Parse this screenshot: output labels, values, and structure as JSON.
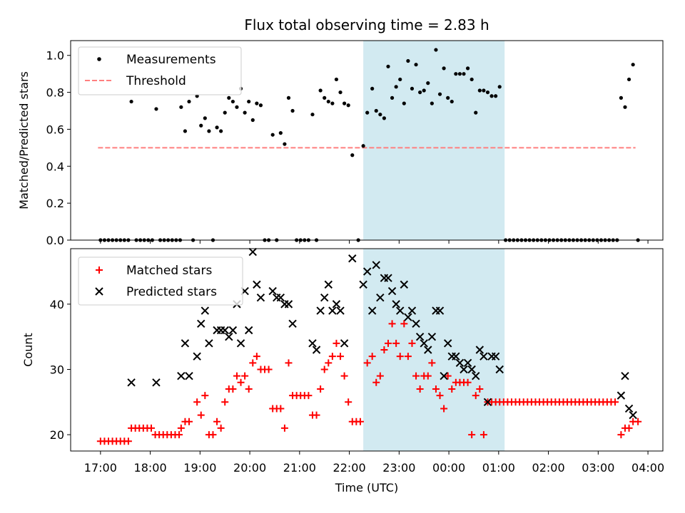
{
  "chart_data": {
    "title": "Flux total observing time = 2.83 h",
    "xlabel": "Time (UTC)",
    "x_unit": "hours since 17:00 UTC",
    "xlim": [
      -0.6,
      11.3
    ],
    "x_ticks": [
      {
        "x": 0,
        "label": "17:00"
      },
      {
        "x": 1,
        "label": "18:00"
      },
      {
        "x": 2,
        "label": "19:00"
      },
      {
        "x": 3,
        "label": "20:00"
      },
      {
        "x": 4,
        "label": "21:00"
      },
      {
        "x": 5,
        "label": "22:00"
      },
      {
        "x": 6,
        "label": "23:00"
      },
      {
        "x": 7,
        "label": "00:00"
      },
      {
        "x": 8,
        "label": "01:00"
      },
      {
        "x": 9,
        "label": "02:00"
      },
      {
        "x": 10,
        "label": "03:00"
      },
      {
        "x": 11,
        "label": "04:00"
      }
    ],
    "shaded_span": {
      "x0": 5.28,
      "x1": 8.12,
      "color": "#add8e6"
    },
    "top": {
      "type": "scatter",
      "ylabel": "Matched/Predicted stars",
      "ylim": [
        0,
        1.08
      ],
      "yticks": [
        "0.0",
        "0.2",
        "0.4",
        "0.6",
        "0.8",
        "1.0"
      ],
      "ytick_values": [
        0,
        0.2,
        0.4,
        0.6,
        0.8,
        1.0
      ],
      "legend": {
        "measurements": "Measurements",
        "threshold": "Threshold"
      },
      "threshold": {
        "y": 0.5,
        "x0": -0.05,
        "x1": 10.75,
        "color": "#ff7f7f"
      },
      "measurements": [
        [
          0.0,
          0
        ],
        [
          0.08,
          0
        ],
        [
          0.16,
          0
        ],
        [
          0.24,
          0
        ],
        [
          0.32,
          0
        ],
        [
          0.4,
          0
        ],
        [
          0.48,
          0
        ],
        [
          0.56,
          0
        ],
        [
          0.62,
          0.75
        ],
        [
          0.72,
          0
        ],
        [
          0.8,
          0
        ],
        [
          0.88,
          0
        ],
        [
          0.96,
          0
        ],
        [
          1.04,
          0
        ],
        [
          1.12,
          0.71
        ],
        [
          1.2,
          0
        ],
        [
          1.28,
          0
        ],
        [
          1.36,
          0
        ],
        [
          1.44,
          0
        ],
        [
          1.52,
          0
        ],
        [
          1.6,
          0
        ],
        [
          1.62,
          0.72
        ],
        [
          1.7,
          0.59
        ],
        [
          1.78,
          0.75
        ],
        [
          1.86,
          0
        ],
        [
          1.94,
          0.78
        ],
        [
          2.02,
          0.62
        ],
        [
          2.1,
          0.66
        ],
        [
          2.18,
          0.59
        ],
        [
          2.26,
          0
        ],
        [
          2.34,
          0.61
        ],
        [
          2.42,
          0.59
        ],
        [
          2.5,
          0.69
        ],
        [
          2.58,
          0.77
        ],
        [
          2.66,
          0.75
        ],
        [
          2.74,
          0.72
        ],
        [
          2.82,
          0.82
        ],
        [
          2.9,
          0.69
        ],
        [
          2.98,
          0.75
        ],
        [
          3.06,
          0.65
        ],
        [
          3.14,
          0.74
        ],
        [
          3.22,
          0.73
        ],
        [
          3.3,
          0
        ],
        [
          3.38,
          0
        ],
        [
          3.46,
          0.57
        ],
        [
          3.54,
          0
        ],
        [
          3.62,
          0.58
        ],
        [
          3.7,
          0.52
        ],
        [
          3.78,
          0.77
        ],
        [
          3.86,
          0.7
        ],
        [
          3.94,
          0
        ],
        [
          4.02,
          0
        ],
        [
          4.1,
          0
        ],
        [
          4.18,
          0
        ],
        [
          4.26,
          0.68
        ],
        [
          4.34,
          0
        ],
        [
          4.42,
          0.81
        ],
        [
          4.5,
          0.77
        ],
        [
          4.58,
          0.75
        ],
        [
          4.66,
          0.74
        ],
        [
          4.74,
          0.87
        ],
        [
          4.82,
          0.8
        ],
        [
          4.9,
          0.74
        ],
        [
          4.98,
          0.73
        ],
        [
          5.06,
          0.46
        ],
        [
          5.18,
          0
        ],
        [
          5.28,
          0.51
        ],
        [
          5.36,
          0.69
        ],
        [
          5.46,
          0.82
        ],
        [
          5.54,
          0.7
        ],
        [
          5.62,
          0.68
        ],
        [
          5.7,
          0.66
        ],
        [
          5.78,
          0.94
        ],
        [
          5.86,
          0.77
        ],
        [
          5.94,
          0.83
        ],
        [
          6.02,
          0.87
        ],
        [
          6.1,
          0.74
        ],
        [
          6.18,
          0.97
        ],
        [
          6.26,
          0.82
        ],
        [
          6.34,
          0.95
        ],
        [
          6.42,
          0.8
        ],
        [
          6.5,
          0.81
        ],
        [
          6.58,
          0.85
        ],
        [
          6.66,
          0.74
        ],
        [
          6.74,
          1.03
        ],
        [
          6.82,
          0.79
        ],
        [
          6.9,
          0.93
        ],
        [
          6.98,
          0.77
        ],
        [
          7.06,
          0.75
        ],
        [
          7.14,
          0.9
        ],
        [
          7.22,
          0.9
        ],
        [
          7.3,
          0.9
        ],
        [
          7.38,
          0.93
        ],
        [
          7.46,
          0.87
        ],
        [
          7.54,
          0.69
        ],
        [
          7.62,
          0.81
        ],
        [
          7.7,
          0.81
        ],
        [
          7.78,
          0.8
        ],
        [
          7.86,
          0.78
        ],
        [
          7.94,
          0.78
        ],
        [
          8.02,
          0.83
        ],
        [
          8.14,
          0
        ],
        [
          8.22,
          0
        ],
        [
          8.3,
          0
        ],
        [
          8.38,
          0
        ],
        [
          8.46,
          0
        ],
        [
          8.54,
          0
        ],
        [
          8.62,
          0
        ],
        [
          8.7,
          0
        ],
        [
          8.78,
          0
        ],
        [
          8.86,
          0
        ],
        [
          8.94,
          0
        ],
        [
          9.02,
          0
        ],
        [
          9.1,
          0
        ],
        [
          9.18,
          0
        ],
        [
          9.26,
          0
        ],
        [
          9.34,
          0
        ],
        [
          9.42,
          0
        ],
        [
          9.5,
          0
        ],
        [
          9.58,
          0
        ],
        [
          9.66,
          0
        ],
        [
          9.74,
          0
        ],
        [
          9.82,
          0
        ],
        [
          9.9,
          0
        ],
        [
          9.98,
          0
        ],
        [
          10.06,
          0
        ],
        [
          10.14,
          0
        ],
        [
          10.22,
          0
        ],
        [
          10.3,
          0
        ],
        [
          10.38,
          0
        ],
        [
          10.46,
          0.77
        ],
        [
          10.54,
          0.72
        ],
        [
          10.62,
          0.87
        ],
        [
          10.7,
          0.95
        ],
        [
          10.8,
          0
        ]
      ]
    },
    "bottom": {
      "type": "scatter",
      "ylabel": "Count",
      "ylim": [
        17.5,
        48.5
      ],
      "yticks": [
        "20",
        "30",
        "40"
      ],
      "ytick_values": [
        20,
        30,
        40
      ],
      "legend": {
        "matched": "Matched stars",
        "predicted": "Predicted stars"
      },
      "matched": [
        [
          0.0,
          19
        ],
        [
          0.08,
          19
        ],
        [
          0.16,
          19
        ],
        [
          0.24,
          19
        ],
        [
          0.32,
          19
        ],
        [
          0.4,
          19
        ],
        [
          0.48,
          19
        ],
        [
          0.56,
          19
        ],
        [
          0.62,
          21
        ],
        [
          0.7,
          21
        ],
        [
          0.78,
          21
        ],
        [
          0.86,
          21
        ],
        [
          0.94,
          21
        ],
        [
          1.02,
          21
        ],
        [
          1.1,
          20
        ],
        [
          1.18,
          20
        ],
        [
          1.26,
          20
        ],
        [
          1.34,
          20
        ],
        [
          1.42,
          20
        ],
        [
          1.5,
          20
        ],
        [
          1.58,
          20
        ],
        [
          1.62,
          21
        ],
        [
          1.7,
          22
        ],
        [
          1.78,
          22
        ],
        [
          1.94,
          25
        ],
        [
          2.02,
          23
        ],
        [
          2.1,
          26
        ],
        [
          2.18,
          20
        ],
        [
          2.26,
          20
        ],
        [
          2.34,
          22
        ],
        [
          2.42,
          21
        ],
        [
          2.5,
          25
        ],
        [
          2.58,
          27
        ],
        [
          2.66,
          27
        ],
        [
          2.74,
          29
        ],
        [
          2.82,
          28
        ],
        [
          2.9,
          29
        ],
        [
          2.98,
          27
        ],
        [
          3.06,
          31
        ],
        [
          3.14,
          32
        ],
        [
          3.22,
          30
        ],
        [
          3.3,
          30
        ],
        [
          3.38,
          30
        ],
        [
          3.46,
          24
        ],
        [
          3.54,
          24
        ],
        [
          3.62,
          24
        ],
        [
          3.7,
          21
        ],
        [
          3.78,
          31
        ],
        [
          3.86,
          26
        ],
        [
          3.94,
          26
        ],
        [
          4.02,
          26
        ],
        [
          4.1,
          26
        ],
        [
          4.18,
          26
        ],
        [
          4.26,
          23
        ],
        [
          4.34,
          23
        ],
        [
          4.42,
          27
        ],
        [
          4.5,
          30
        ],
        [
          4.58,
          31
        ],
        [
          4.66,
          32
        ],
        [
          4.74,
          34
        ],
        [
          4.82,
          32
        ],
        [
          4.9,
          29
        ],
        [
          4.98,
          25
        ],
        [
          5.06,
          22
        ],
        [
          5.14,
          22
        ],
        [
          5.22,
          22
        ],
        [
          5.36,
          31
        ],
        [
          5.46,
          32
        ],
        [
          5.54,
          28
        ],
        [
          5.62,
          29
        ],
        [
          5.7,
          33
        ],
        [
          5.78,
          34
        ],
        [
          5.86,
          37
        ],
        [
          5.94,
          34
        ],
        [
          6.02,
          32
        ],
        [
          6.1,
          37
        ],
        [
          6.18,
          32
        ],
        [
          6.26,
          34
        ],
        [
          6.34,
          29
        ],
        [
          6.42,
          27
        ],
        [
          6.5,
          29
        ],
        [
          6.58,
          29
        ],
        [
          6.66,
          31
        ],
        [
          6.74,
          27
        ],
        [
          6.82,
          26
        ],
        [
          6.9,
          24
        ],
        [
          6.98,
          29
        ],
        [
          7.06,
          27
        ],
        [
          7.14,
          28
        ],
        [
          7.22,
          28
        ],
        [
          7.3,
          28
        ],
        [
          7.38,
          28
        ],
        [
          7.46,
          20
        ],
        [
          7.54,
          26
        ],
        [
          7.62,
          27
        ],
        [
          7.7,
          20
        ],
        [
          7.78,
          25
        ],
        [
          7.86,
          25
        ],
        [
          7.94,
          25
        ],
        [
          8.02,
          25
        ],
        [
          8.1,
          25
        ],
        [
          8.18,
          25
        ],
        [
          8.26,
          25
        ],
        [
          8.34,
          25
        ],
        [
          8.42,
          25
        ],
        [
          8.5,
          25
        ],
        [
          8.58,
          25
        ],
        [
          8.66,
          25
        ],
        [
          8.74,
          25
        ],
        [
          8.82,
          25
        ],
        [
          8.9,
          25
        ],
        [
          8.98,
          25
        ],
        [
          9.06,
          25
        ],
        [
          9.14,
          25
        ],
        [
          9.22,
          25
        ],
        [
          9.3,
          25
        ],
        [
          9.38,
          25
        ],
        [
          9.46,
          25
        ],
        [
          9.54,
          25
        ],
        [
          9.62,
          25
        ],
        [
          9.7,
          25
        ],
        [
          9.78,
          25
        ],
        [
          9.86,
          25
        ],
        [
          9.94,
          25
        ],
        [
          10.02,
          25
        ],
        [
          10.1,
          25
        ],
        [
          10.18,
          25
        ],
        [
          10.26,
          25
        ],
        [
          10.34,
          25
        ],
        [
          10.46,
          20
        ],
        [
          10.54,
          21
        ],
        [
          10.62,
          21
        ],
        [
          10.7,
          22
        ],
        [
          10.8,
          22
        ]
      ],
      "predicted": [
        [
          0.62,
          28
        ],
        [
          1.12,
          28
        ],
        [
          1.62,
          29
        ],
        [
          1.7,
          34
        ],
        [
          1.78,
          29
        ],
        [
          1.94,
          32
        ],
        [
          2.02,
          37
        ],
        [
          2.1,
          39
        ],
        [
          2.18,
          34
        ],
        [
          2.34,
          36
        ],
        [
          2.42,
          36
        ],
        [
          2.5,
          36
        ],
        [
          2.58,
          35
        ],
        [
          2.66,
          36
        ],
        [
          2.74,
          40
        ],
        [
          2.82,
          34
        ],
        [
          2.9,
          42
        ],
        [
          2.98,
          36
        ],
        [
          3.06,
          48
        ],
        [
          3.14,
          43
        ],
        [
          3.22,
          41
        ],
        [
          3.46,
          42
        ],
        [
          3.54,
          41
        ],
        [
          3.62,
          41
        ],
        [
          3.7,
          40
        ],
        [
          3.78,
          40
        ],
        [
          3.86,
          37
        ],
        [
          4.26,
          34
        ],
        [
          4.34,
          33
        ],
        [
          4.42,
          39
        ],
        [
          4.5,
          41
        ],
        [
          4.58,
          43
        ],
        [
          4.66,
          39
        ],
        [
          4.74,
          40
        ],
        [
          4.82,
          39
        ],
        [
          4.9,
          34
        ],
        [
          5.06,
          47
        ],
        [
          5.28,
          43
        ],
        [
          5.36,
          45
        ],
        [
          5.46,
          39
        ],
        [
          5.54,
          46
        ],
        [
          5.62,
          41
        ],
        [
          5.7,
          44
        ],
        [
          5.78,
          44
        ],
        [
          5.86,
          42
        ],
        [
          5.94,
          40
        ],
        [
          6.02,
          39
        ],
        [
          6.1,
          43
        ],
        [
          6.18,
          38
        ],
        [
          6.26,
          39
        ],
        [
          6.34,
          37
        ],
        [
          6.42,
          35
        ],
        [
          6.5,
          34
        ],
        [
          6.58,
          33
        ],
        [
          6.66,
          35
        ],
        [
          6.74,
          39
        ],
        [
          6.82,
          39
        ],
        [
          6.9,
          29
        ],
        [
          6.98,
          34
        ],
        [
          7.06,
          32
        ],
        [
          7.14,
          32
        ],
        [
          7.22,
          31
        ],
        [
          7.3,
          30
        ],
        [
          7.38,
          31
        ],
        [
          7.46,
          30
        ],
        [
          7.54,
          29
        ],
        [
          7.62,
          33
        ],
        [
          7.7,
          32
        ],
        [
          7.78,
          25
        ],
        [
          7.86,
          32
        ],
        [
          7.94,
          32
        ],
        [
          8.02,
          30
        ],
        [
          10.46,
          26
        ],
        [
          10.54,
          29
        ],
        [
          10.62,
          24
        ],
        [
          10.7,
          23
        ]
      ]
    }
  }
}
